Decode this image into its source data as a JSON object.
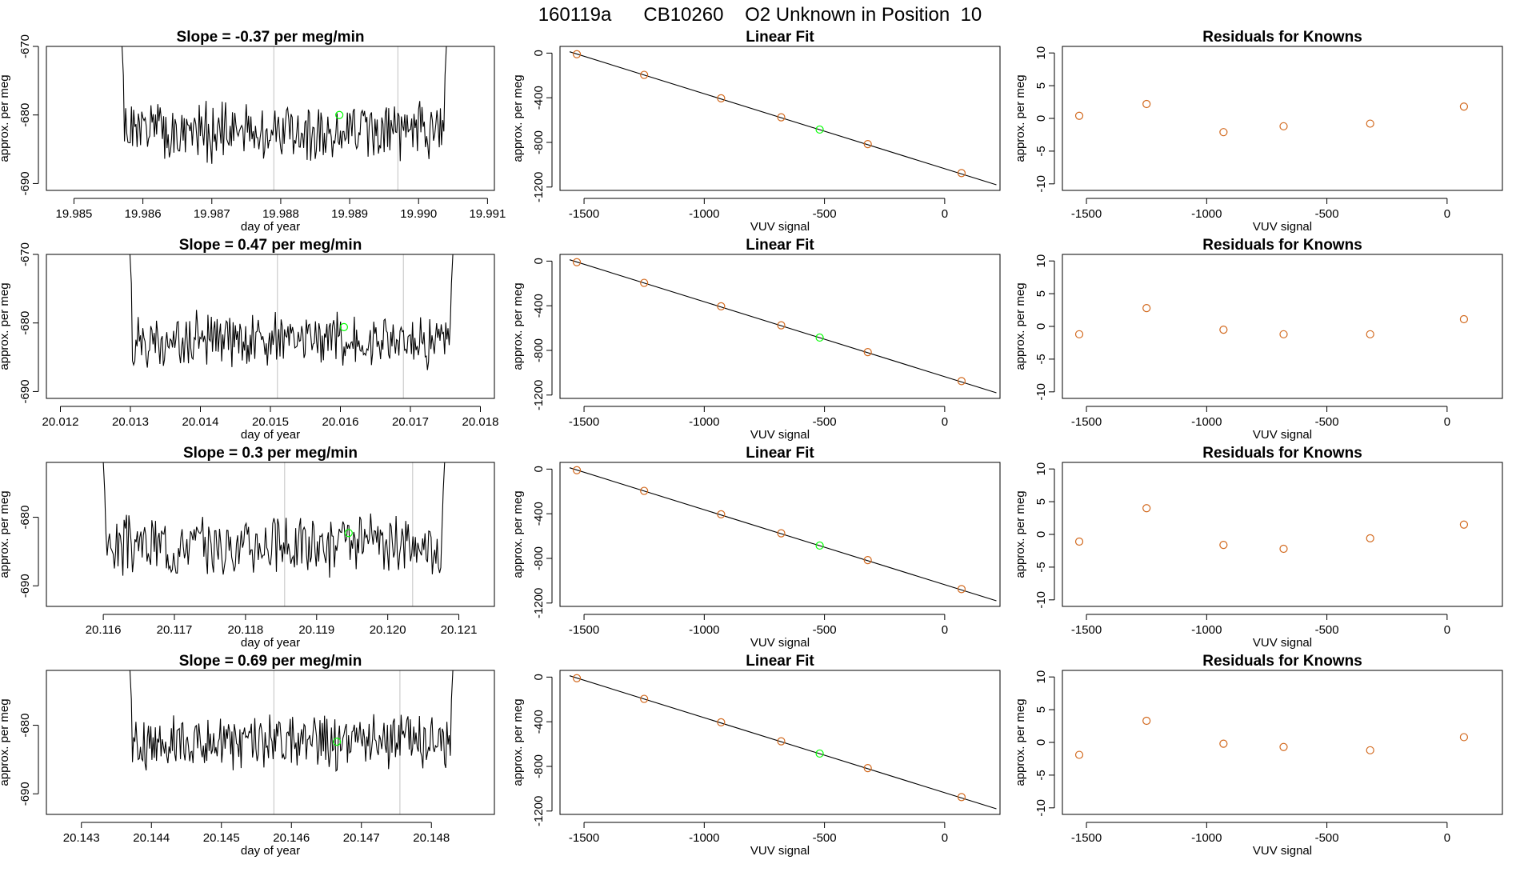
{
  "page_title": "160119a      CB10260    O2 Unknown in Position  10",
  "colors": {
    "trace": "#000000",
    "known": "#d2691e",
    "unknown": "#00ff00",
    "fitline": "#000000",
    "guides": "#cccccc"
  },
  "chart_data": [
    {
      "id": "trace-1",
      "type": "line",
      "title": "Slope =  -0.37  per meg/min",
      "xlabel": "day of year",
      "ylabel": "approx. per meg",
      "xlim": [
        19.9846,
        19.9911
      ],
      "ylim": [
        -691,
        -670
      ],
      "xticks": [
        19.985,
        19.986,
        19.987,
        19.988,
        19.989,
        19.99,
        19.991
      ],
      "xtick_labels": [
        "19.985",
        "19.986",
        "19.987",
        "19.988",
        "19.989",
        "19.990",
        "19.991"
      ],
      "yticks": [
        -670,
        -680,
        -690
      ],
      "ytick_labels": [
        "-670",
        "-680",
        "-690"
      ],
      "vlines": [
        19.9879,
        19.9897
      ],
      "trace_start": 19.98555,
      "trace_end": 19.99055,
      "y_center": -682.5,
      "y_amp": 3.5,
      "seed": 1,
      "unknown_point": {
        "x": 19.98885,
        "y": -680.0
      }
    },
    {
      "id": "fit-1",
      "type": "scatter",
      "title": "Linear Fit",
      "xlabel": "VUV signal",
      "ylabel": "approx. per meg",
      "xlim": [
        -1600,
        230
      ],
      "ylim": [
        -1230,
        60
      ],
      "xticks": [
        -1500,
        -1000,
        -500,
        0
      ],
      "xtick_labels": [
        "-1500",
        "-1000",
        "-500",
        "0"
      ],
      "yticks": [
        0,
        -400,
        -800,
        -1200
      ],
      "ytick_labels": [
        "0",
        "-400",
        "-800",
        "-1200"
      ],
      "fit_line": {
        "x": [
          -1560,
          215
        ],
        "y": [
          12,
          -1180
        ]
      },
      "points": [
        {
          "x": -1530,
          "y": -10
        },
        {
          "x": -1250,
          "y": -195
        },
        {
          "x": -930,
          "y": -405
        },
        {
          "x": -680,
          "y": -575
        },
        {
          "x": -320,
          "y": -815
        },
        {
          "x": 70,
          "y": -1075
        }
      ],
      "unknown_point": {
        "x": -520,
        "y": -685
      }
    },
    {
      "id": "resid-1",
      "type": "scatter",
      "title": "Residuals for Knowns",
      "xlabel": "VUV signal",
      "ylabel": "approx. per meg",
      "xlim": [
        -1600,
        230
      ],
      "ylim": [
        -11,
        11
      ],
      "xticks": [
        -1500,
        -1000,
        -500,
        0
      ],
      "xtick_labels": [
        "-1500",
        "-1000",
        "-500",
        "0"
      ],
      "yticks": [
        10,
        5,
        0,
        -5,
        -10
      ],
      "ytick_labels": [
        "10",
        "5",
        "0",
        "-5",
        "-10"
      ],
      "points": [
        {
          "x": -1530,
          "y": 0.4
        },
        {
          "x": -1250,
          "y": 2.2
        },
        {
          "x": -930,
          "y": -2.1
        },
        {
          "x": -680,
          "y": -1.2
        },
        {
          "x": -320,
          "y": -0.8
        },
        {
          "x": 70,
          "y": 1.8
        }
      ]
    },
    {
      "id": "trace-2",
      "type": "line",
      "title": "Slope =  0.47  per meg/min",
      "xlabel": "day of year",
      "ylabel": "approx. per meg",
      "xlim": [
        20.0118,
        20.0182
      ],
      "ylim": [
        -691,
        -670
      ],
      "xticks": [
        20.012,
        20.013,
        20.014,
        20.015,
        20.016,
        20.017,
        20.018
      ],
      "xtick_labels": [
        "20.012",
        "20.013",
        "20.014",
        "20.015",
        "20.016",
        "20.017",
        "20.018"
      ],
      "yticks": [
        -670,
        -680,
        -690
      ],
      "ytick_labels": [
        "-670",
        "-680",
        "-690"
      ],
      "vlines": [
        20.0151,
        20.0169
      ],
      "trace_start": 20.01285,
      "trace_end": 20.01775,
      "y_center": -682.5,
      "y_amp": 3.2,
      "seed": 2,
      "unknown_point": {
        "x": 20.01605,
        "y": -680.6
      }
    },
    {
      "id": "fit-2",
      "type": "scatter",
      "title": "Linear Fit",
      "xlabel": "VUV signal",
      "ylabel": "approx. per meg",
      "xlim": [
        -1600,
        230
      ],
      "ylim": [
        -1230,
        60
      ],
      "xticks": [
        -1500,
        -1000,
        -500,
        0
      ],
      "xtick_labels": [
        "-1500",
        "-1000",
        "-500",
        "0"
      ],
      "yticks": [
        0,
        -400,
        -800,
        -1200
      ],
      "ytick_labels": [
        "0",
        "-400",
        "-800",
        "-1200"
      ],
      "fit_line": {
        "x": [
          -1560,
          215
        ],
        "y": [
          12,
          -1180
        ]
      },
      "points": [
        {
          "x": -1530,
          "y": -10
        },
        {
          "x": -1250,
          "y": -195
        },
        {
          "x": -930,
          "y": -405
        },
        {
          "x": -680,
          "y": -575
        },
        {
          "x": -320,
          "y": -815
        },
        {
          "x": 70,
          "y": -1075
        }
      ],
      "unknown_point": {
        "x": -520,
        "y": -685
      }
    },
    {
      "id": "resid-2",
      "type": "scatter",
      "title": "Residuals for Knowns",
      "xlabel": "VUV signal",
      "ylabel": "approx. per meg",
      "xlim": [
        -1600,
        230
      ],
      "ylim": [
        -11,
        11
      ],
      "xticks": [
        -1500,
        -1000,
        -500,
        0
      ],
      "xtick_labels": [
        "-1500",
        "-1000",
        "-500",
        "0"
      ],
      "yticks": [
        10,
        5,
        0,
        -5,
        -10
      ],
      "ytick_labels": [
        "10",
        "5",
        "0",
        "-5",
        "-10"
      ],
      "points": [
        {
          "x": -1530,
          "y": -1.2
        },
        {
          "x": -1250,
          "y": 2.8
        },
        {
          "x": -930,
          "y": -0.5
        },
        {
          "x": -680,
          "y": -1.2
        },
        {
          "x": -320,
          "y": -1.2
        },
        {
          "x": 70,
          "y": 1.1
        }
      ]
    },
    {
      "id": "trace-3",
      "type": "line",
      "title": "Slope =  0.3  per meg/min",
      "xlabel": "day of year",
      "ylabel": "approx. per meg",
      "xlim": [
        20.1152,
        20.1215
      ],
      "ylim": [
        -693,
        -672
      ],
      "xticks": [
        20.116,
        20.117,
        20.118,
        20.119,
        20.12,
        20.121
      ],
      "xtick_labels": [
        "20.116",
        "20.117",
        "20.118",
        "20.119",
        "20.120",
        "20.121"
      ],
      "yticks": [
        -680,
        -690
      ],
      "ytick_labels": [
        "-680",
        "-690"
      ],
      "vlines": [
        20.11855,
        20.12035
      ],
      "trace_start": 20.11585,
      "trace_end": 20.12095,
      "y_center": -684.0,
      "y_amp": 3.5,
      "seed": 3,
      "unknown_point": {
        "x": 20.11945,
        "y": -682.3
      }
    },
    {
      "id": "fit-3",
      "type": "scatter",
      "title": "Linear Fit",
      "xlabel": "VUV signal",
      "ylabel": "approx. per meg",
      "xlim": [
        -1600,
        230
      ],
      "ylim": [
        -1230,
        60
      ],
      "xticks": [
        -1500,
        -1000,
        -500,
        0
      ],
      "xtick_labels": [
        "-1500",
        "-1000",
        "-500",
        "0"
      ],
      "yticks": [
        0,
        -400,
        -800,
        -1200
      ],
      "ytick_labels": [
        "0",
        "-400",
        "-800",
        "-1200"
      ],
      "fit_line": {
        "x": [
          -1560,
          215
        ],
        "y": [
          12,
          -1180
        ]
      },
      "points": [
        {
          "x": -1530,
          "y": -10
        },
        {
          "x": -1250,
          "y": -195
        },
        {
          "x": -930,
          "y": -405
        },
        {
          "x": -680,
          "y": -575
        },
        {
          "x": -320,
          "y": -815
        },
        {
          "x": 70,
          "y": -1075
        }
      ],
      "unknown_point": {
        "x": -520,
        "y": -685
      }
    },
    {
      "id": "resid-3",
      "type": "scatter",
      "title": "Residuals for Knowns",
      "xlabel": "VUV signal",
      "ylabel": "approx. per meg",
      "xlim": [
        -1600,
        230
      ],
      "ylim": [
        -11,
        11
      ],
      "xticks": [
        -1500,
        -1000,
        -500,
        0
      ],
      "xtick_labels": [
        "-1500",
        "-1000",
        "-500",
        "0"
      ],
      "yticks": [
        10,
        5,
        0,
        -5,
        -10
      ],
      "ytick_labels": [
        "10",
        "5",
        "0",
        "-5",
        "-10"
      ],
      "points": [
        {
          "x": -1530,
          "y": -1.1
        },
        {
          "x": -1250,
          "y": 4.0
        },
        {
          "x": -930,
          "y": -1.6
        },
        {
          "x": -680,
          "y": -2.2
        },
        {
          "x": -320,
          "y": -0.6
        },
        {
          "x": 70,
          "y": 1.5
        }
      ]
    },
    {
      "id": "trace-4",
      "type": "line",
      "title": "Slope =  0.69  per meg/min",
      "xlabel": "day of year",
      "ylabel": "approx. per meg",
      "xlim": [
        20.1425,
        20.1489
      ],
      "ylim": [
        -693,
        -672
      ],
      "xticks": [
        20.143,
        20.144,
        20.145,
        20.146,
        20.147,
        20.148
      ],
      "xtick_labels": [
        "20.143",
        "20.144",
        "20.145",
        "20.146",
        "20.147",
        "20.148"
      ],
      "yticks": [
        -680,
        -690
      ],
      "ytick_labels": [
        "-680",
        "-690"
      ],
      "vlines": [
        20.14575,
        20.14755
      ],
      "trace_start": 20.14355,
      "trace_end": 20.14845,
      "y_center": -682.5,
      "y_amp": 3.3,
      "seed": 4,
      "unknown_point": {
        "x": 20.14665,
        "y": -682.4
      }
    },
    {
      "id": "fit-4",
      "type": "scatter",
      "title": "Linear Fit",
      "xlabel": "VUV signal",
      "ylabel": "approx. per meg",
      "xlim": [
        -1600,
        230
      ],
      "ylim": [
        -1230,
        60
      ],
      "xticks": [
        -1500,
        -1000,
        -500,
        0
      ],
      "xtick_labels": [
        "-1500",
        "-1000",
        "-500",
        "0"
      ],
      "yticks": [
        0,
        -400,
        -800,
        -1200
      ],
      "ytick_labels": [
        "0",
        "-400",
        "-800",
        "-1200"
      ],
      "fit_line": {
        "x": [
          -1560,
          215
        ],
        "y": [
          12,
          -1180
        ]
      },
      "points": [
        {
          "x": -1530,
          "y": -10
        },
        {
          "x": -1250,
          "y": -195
        },
        {
          "x": -930,
          "y": -405
        },
        {
          "x": -680,
          "y": -575
        },
        {
          "x": -320,
          "y": -815
        },
        {
          "x": 70,
          "y": -1075
        }
      ],
      "unknown_point": {
        "x": -520,
        "y": -685
      }
    },
    {
      "id": "resid-4",
      "type": "scatter",
      "title": "Residuals for Knowns",
      "xlabel": "VUV signal",
      "ylabel": "approx. per meg",
      "xlim": [
        -1600,
        230
      ],
      "ylim": [
        -11,
        11
      ],
      "xticks": [
        -1500,
        -1000,
        -500,
        0
      ],
      "xtick_labels": [
        "-1500",
        "-1000",
        "-500",
        "0"
      ],
      "yticks": [
        10,
        5,
        0,
        -5,
        -10
      ],
      "ytick_labels": [
        "10",
        "5",
        "0",
        "-5",
        "-10"
      ],
      "points": [
        {
          "x": -1530,
          "y": -1.9
        },
        {
          "x": -1250,
          "y": 3.3
        },
        {
          "x": -930,
          "y": -0.2
        },
        {
          "x": -680,
          "y": -0.7
        },
        {
          "x": -320,
          "y": -1.2
        },
        {
          "x": 70,
          "y": 0.8
        }
      ]
    }
  ]
}
